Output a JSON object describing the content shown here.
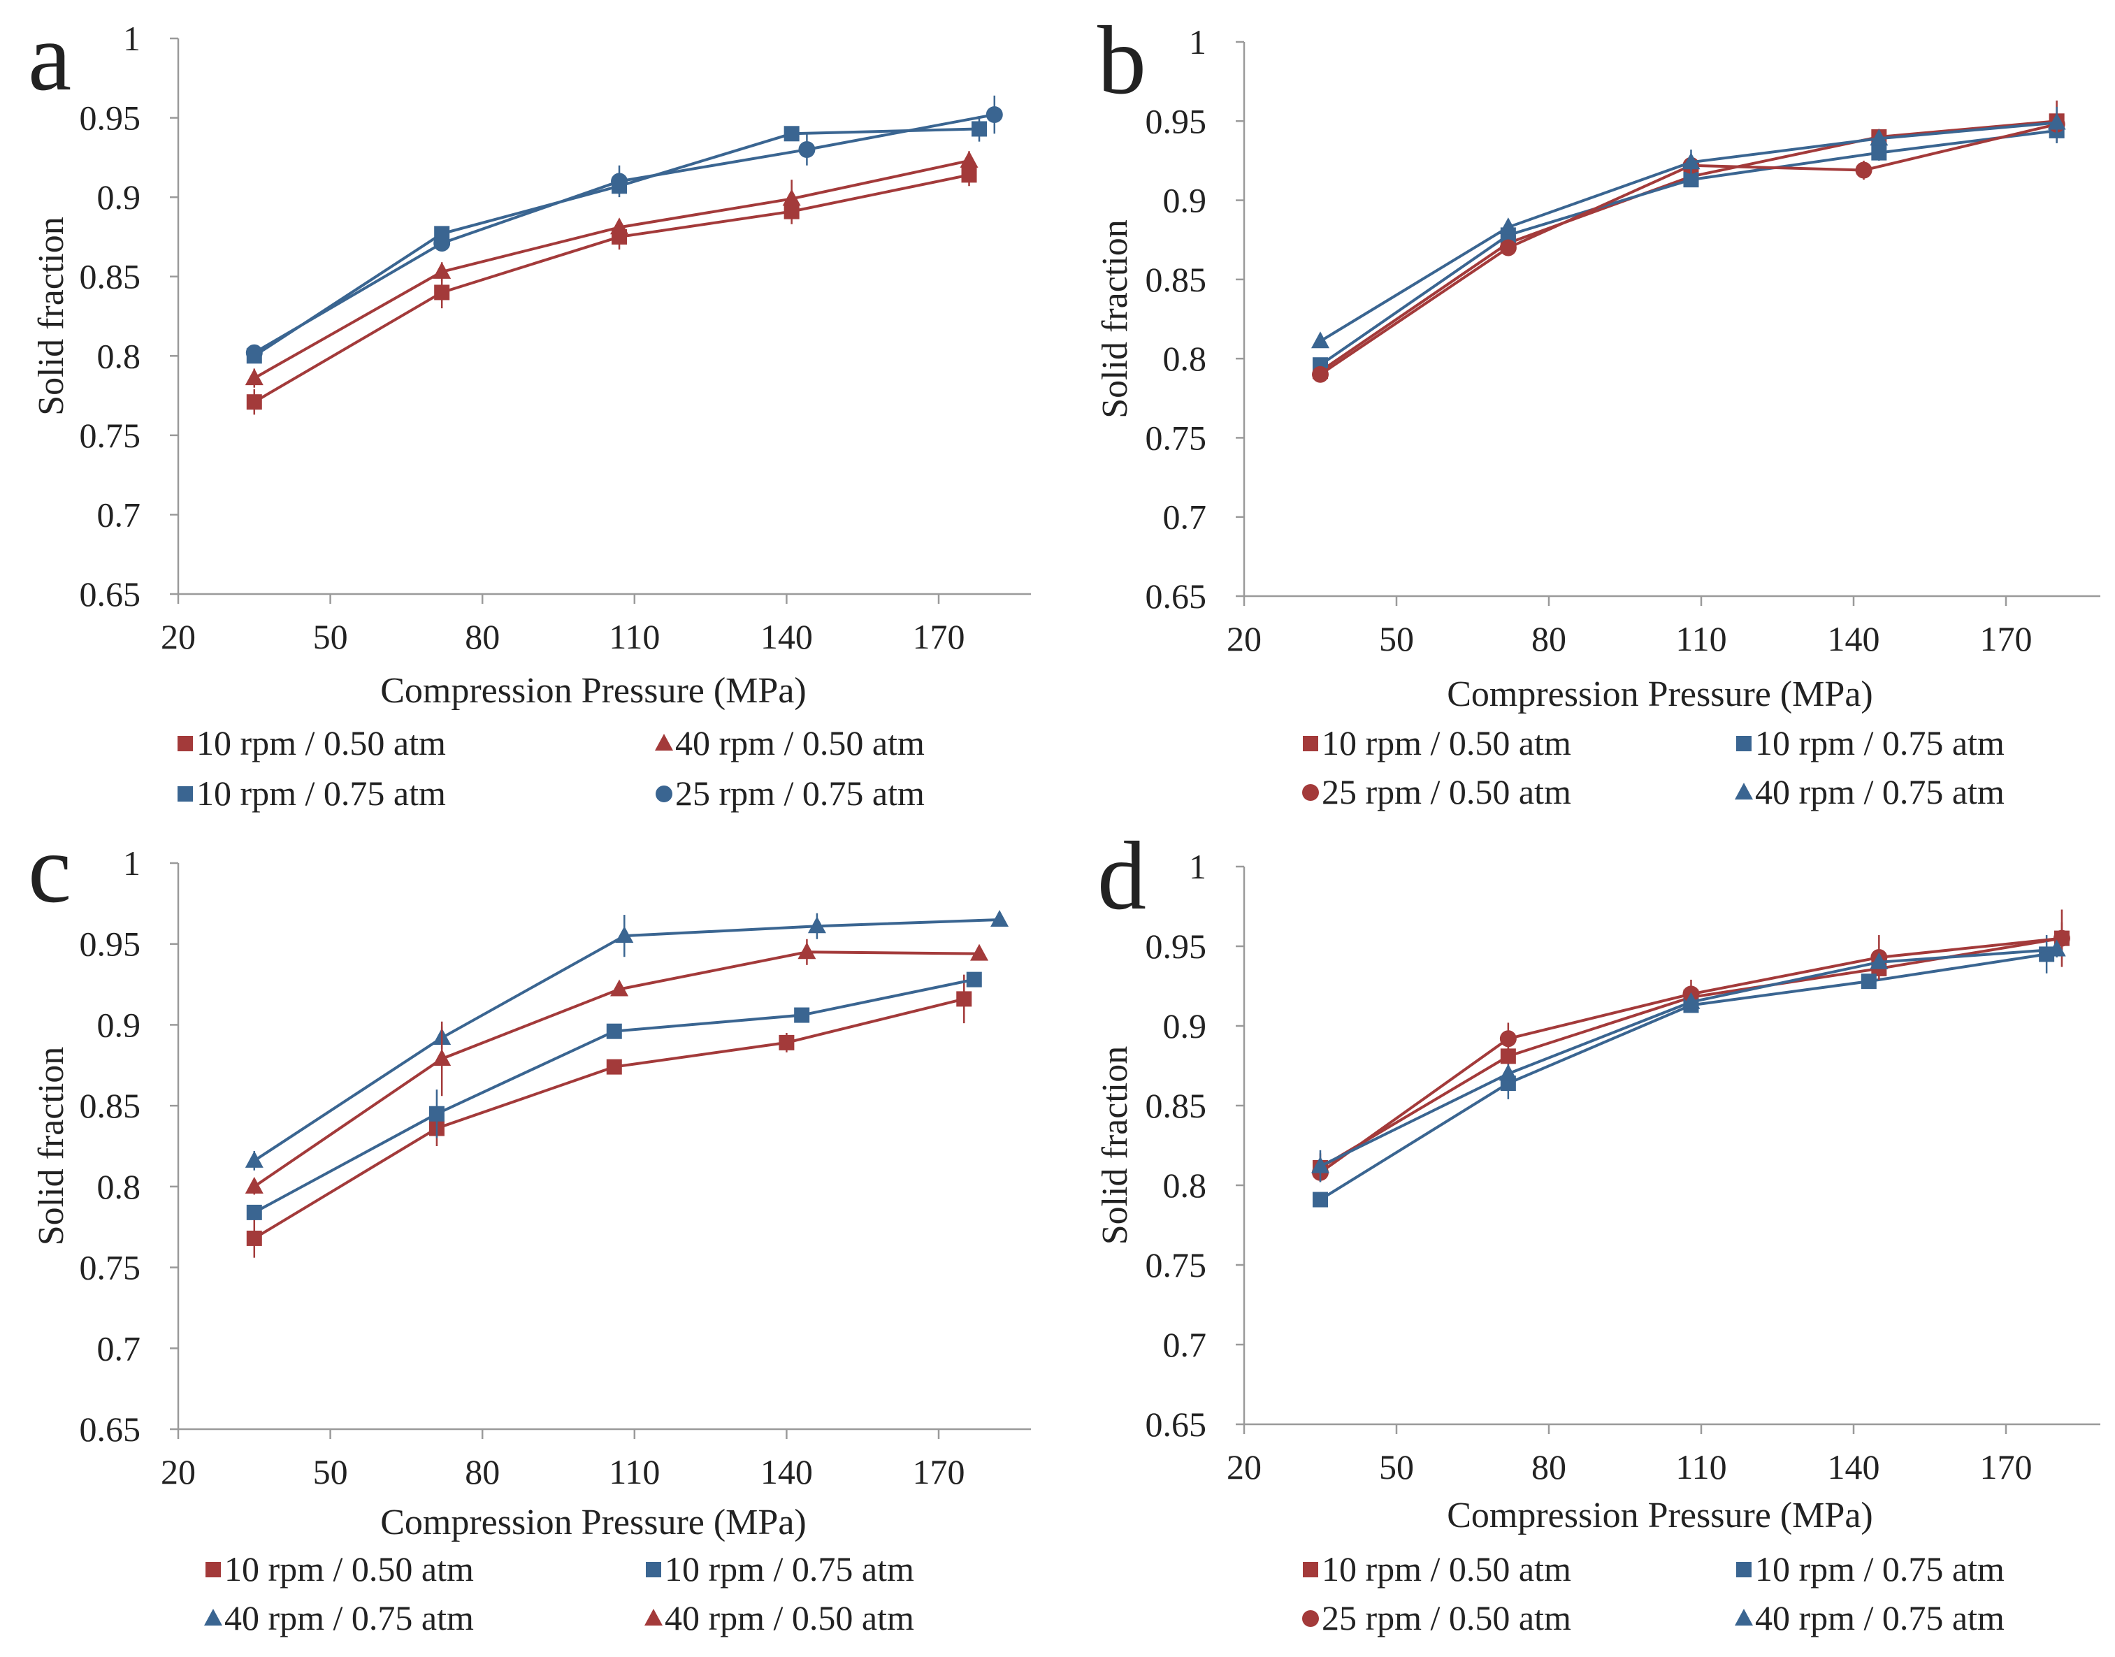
{
  "colors": {
    "red": "#a33a3a",
    "blue": "#3a6591",
    "axis": "#9a9a9a",
    "text": "#222222"
  },
  "chart_data": [
    {
      "type": "line",
      "panel": "a",
      "xlabel": "Compression Pressure (MPa)",
      "ylabel": "Solid fraction",
      "xlim": [
        20,
        190
      ],
      "ylim": [
        0.65,
        1
      ],
      "xticks": [
        "20",
        "50",
        "80",
        "110",
        "140",
        "170"
      ],
      "yticks": [
        "0.65",
        "0.7",
        "0.75",
        "0.8",
        "0.85",
        "0.9",
        "0.95",
        "1"
      ],
      "grid": false,
      "legend_position": "bottom",
      "series": [
        {
          "name": "10 rpm / 0.50 atm",
          "color": "#a33a3a",
          "marker": "square",
          "x": [
            35,
            72,
            107,
            141,
            176
          ],
          "y": [
            0.771,
            0.84,
            0.875,
            0.891,
            0.914
          ],
          "yerr": [
            0.008,
            0.01,
            0.008,
            0.008,
            0.007
          ]
        },
        {
          "name": "40 rpm / 0.50 atm",
          "color": "#a33a3a",
          "marker": "triangle",
          "x": [
            35,
            72,
            107,
            141,
            176
          ],
          "y": [
            0.786,
            0.853,
            0.881,
            0.899,
            0.923
          ],
          "yerr": [
            0.006,
            0.006,
            0.005,
            0.012,
            0.006
          ]
        },
        {
          "name": "10 rpm / 0.75 atm",
          "color": "#3a6591",
          "marker": "square",
          "x": [
            35,
            72,
            107,
            141,
            178
          ],
          "y": [
            0.8,
            0.877,
            0.907,
            0.94,
            0.943
          ],
          "yerr": [
            0.004,
            0.004,
            0.005,
            0.004,
            0.008
          ]
        },
        {
          "name": "25 rpm / 0.75 atm",
          "color": "#3a6591",
          "marker": "circle",
          "x": [
            35,
            72,
            107,
            144,
            181
          ],
          "y": [
            0.802,
            0.871,
            0.91,
            0.93,
            0.952
          ],
          "yerr": [
            0.005,
            0.004,
            0.01,
            0.01,
            0.012
          ]
        }
      ]
    },
    {
      "type": "line",
      "panel": "b",
      "xlabel": "Compression Pressure (MPa)",
      "ylabel": "Solid fraction",
      "xlim": [
        20,
        190
      ],
      "ylim": [
        0.65,
        1
      ],
      "xticks": [
        "20",
        "50",
        "80",
        "110",
        "140",
        "170"
      ],
      "yticks": [
        "0.65",
        "0.7",
        "0.75",
        "0.8",
        "0.85",
        "0.9",
        "0.95",
        "1"
      ],
      "grid": false,
      "legend_position": "bottom",
      "series": [
        {
          "name": "10 rpm / 0.50 atm",
          "color": "#a33a3a",
          "marker": "square",
          "x": [
            35,
            72,
            108,
            145,
            180
          ],
          "y": [
            0.792,
            0.873,
            0.915,
            0.94,
            0.95
          ],
          "yerr": [
            0.005,
            0.006,
            0.005,
            0.005,
            0.013
          ]
        },
        {
          "name": "10 rpm / 0.75 atm",
          "color": "#3a6591",
          "marker": "square",
          "x": [
            35,
            72,
            108,
            145,
            180
          ],
          "y": [
            0.796,
            0.878,
            0.913,
            0.93,
            0.944
          ],
          "yerr": [
            0.004,
            0.004,
            0.004,
            0.005,
            0.008
          ]
        },
        {
          "name": "25 rpm / 0.50 atm",
          "color": "#a33a3a",
          "marker": "circle",
          "x": [
            35,
            72,
            108,
            142,
            180
          ],
          "y": [
            0.79,
            0.87,
            0.922,
            0.919,
            0.948
          ],
          "yerr": [
            0.005,
            0.005,
            0.004,
            0.006,
            0.006
          ]
        },
        {
          "name": "40 rpm / 0.75 atm",
          "color": "#3a6591",
          "marker": "triangle",
          "x": [
            35,
            72,
            108,
            145,
            180
          ],
          "y": [
            0.811,
            0.883,
            0.924,
            0.939,
            0.949
          ],
          "yerr": [
            0.004,
            0.004,
            0.008,
            0.004,
            0.01
          ]
        }
      ]
    },
    {
      "type": "line",
      "panel": "c",
      "xlabel": "Compression Pressure (MPa)",
      "ylabel": "Solid fraction",
      "xlim": [
        20,
        190
      ],
      "ylim": [
        0.65,
        1
      ],
      "xticks": [
        "20",
        "50",
        "80",
        "110",
        "140",
        "170"
      ],
      "yticks": [
        "0.65",
        "0.7",
        "0.75",
        "0.8",
        "0.85",
        "0.9",
        "0.95",
        "1"
      ],
      "grid": false,
      "legend_position": "bottom",
      "series": [
        {
          "name": "10 rpm / 0.50 atm",
          "color": "#a33a3a",
          "marker": "square",
          "x": [
            35,
            71,
            106,
            140,
            175
          ],
          "y": [
            0.768,
            0.836,
            0.874,
            0.889,
            0.916
          ],
          "yerr": [
            0.012,
            0.011,
            0.004,
            0.006,
            0.015
          ]
        },
        {
          "name": "10 rpm / 0.75 atm",
          "color": "#3a6591",
          "marker": "square",
          "x": [
            35,
            71,
            106,
            143,
            177
          ],
          "y": [
            0.784,
            0.845,
            0.896,
            0.906,
            0.928
          ],
          "yerr": [
            0.004,
            0.015,
            0.004,
            0.004,
            0.004
          ]
        },
        {
          "name": "40 rpm / 0.75 atm",
          "color": "#3a6591",
          "marker": "triangle",
          "x": [
            35,
            72,
            108,
            146,
            182
          ],
          "y": [
            0.816,
            0.892,
            0.955,
            0.961,
            0.965
          ],
          "yerr": [
            0.006,
            0.007,
            0.013,
            0.008,
            0.004
          ]
        },
        {
          "name": "40 rpm / 0.50 atm",
          "color": "#a33a3a",
          "marker": "triangle",
          "x": [
            35,
            72,
            107,
            144,
            178
          ],
          "y": [
            0.8,
            0.879,
            0.922,
            0.945,
            0.944
          ],
          "yerr": [
            0.005,
            0.023,
            0.004,
            0.008,
            0.004
          ]
        }
      ]
    },
    {
      "type": "line",
      "panel": "d",
      "xlabel": "Compression Pressure (MPa)",
      "ylabel": "Solid fraction",
      "xlim": [
        20,
        190
      ],
      "ylim": [
        0.65,
        1
      ],
      "xticks": [
        "20",
        "50",
        "80",
        "110",
        "140",
        "170"
      ],
      "yticks": [
        "0.65",
        "0.7",
        "0.75",
        "0.8",
        "0.85",
        "0.9",
        "0.95",
        "1"
      ],
      "grid": false,
      "legend_position": "bottom",
      "series": [
        {
          "name": "10 rpm / 0.50 atm",
          "color": "#a33a3a",
          "marker": "square",
          "x": [
            35,
            72,
            108,
            145,
            181
          ],
          "y": [
            0.811,
            0.881,
            0.918,
            0.936,
            0.955
          ],
          "yerr": [
            0.009,
            0.013,
            0.004,
            0.005,
            0.018
          ]
        },
        {
          "name": "10 rpm / 0.75 atm",
          "color": "#3a6591",
          "marker": "square",
          "x": [
            35,
            72,
            108,
            143,
            178
          ],
          "y": [
            0.791,
            0.864,
            0.913,
            0.928,
            0.945
          ],
          "yerr": [
            0.004,
            0.01,
            0.004,
            0.004,
            0.012
          ]
        },
        {
          "name": "25 rpm / 0.50 atm",
          "color": "#a33a3a",
          "marker": "circle",
          "x": [
            35,
            72,
            108,
            145,
            181
          ],
          "y": [
            0.808,
            0.892,
            0.92,
            0.943,
            0.955
          ],
          "yerr": [
            0.005,
            0.01,
            0.009,
            0.014,
            0.01
          ]
        },
        {
          "name": "40 rpm / 0.75 atm",
          "color": "#3a6591",
          "marker": "triangle",
          "x": [
            35,
            72,
            108,
            145,
            180
          ],
          "y": [
            0.812,
            0.87,
            0.915,
            0.94,
            0.948
          ],
          "yerr": [
            0.01,
            0.006,
            0.004,
            0.004,
            0.005
          ]
        }
      ]
    }
  ]
}
